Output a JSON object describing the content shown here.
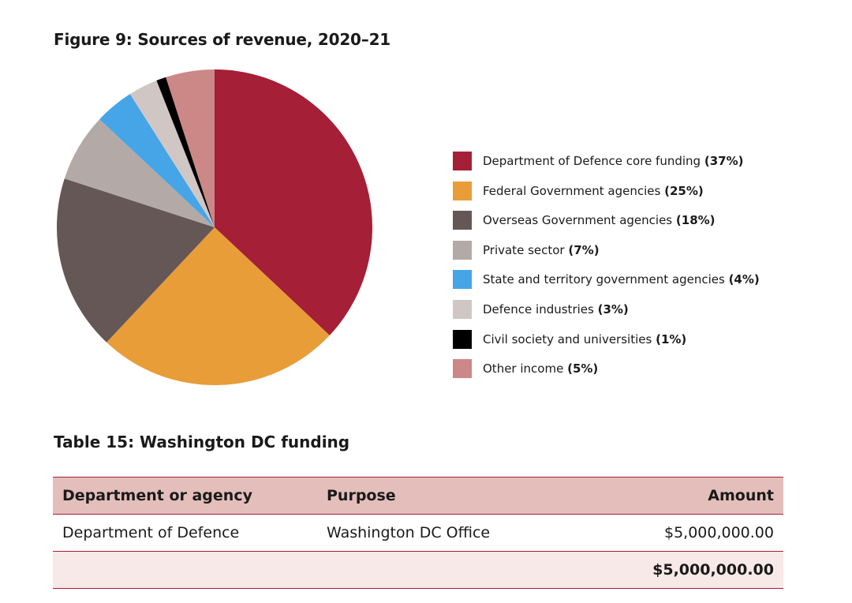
{
  "figure": {
    "title": "Figure 9: Sources of revenue, 2020–21"
  },
  "chart_data": {
    "type": "pie",
    "title": "Figure 9: Sources of revenue, 2020–21",
    "legend_position": "right",
    "slices": [
      {
        "label": "Department of Defence core funding",
        "pct_label": "(37%)",
        "value": 37,
        "color": "#a51f36"
      },
      {
        "label": "Federal Government agencies",
        "pct_label": "(25%)",
        "value": 25,
        "color": "#e89d38"
      },
      {
        "label": "Overseas Government agencies",
        "pct_label": "(18%)",
        "value": 18,
        "color": "#655756"
      },
      {
        "label": "Private sector",
        "pct_label": "(7%)",
        "value": 7,
        "color": "#b3a9a7"
      },
      {
        "label": "State and territory government agencies",
        "pct_label": "(4%)",
        "value": 4,
        "color": "#45a5e6"
      },
      {
        "label": "Defence industries",
        "pct_label": "(3%)",
        "value": 3,
        "color": "#d0c7c5"
      },
      {
        "label": "Civil society and universities",
        "pct_label": "(1%)",
        "value": 1,
        "color": "#000000"
      },
      {
        "label": "Other income",
        "pct_label": "(5%)",
        "value": 5,
        "color": "#cc8787"
      }
    ]
  },
  "table": {
    "title": "Table 15: Washington DC funding",
    "headers": [
      "Department or agency",
      "Purpose",
      "Amount"
    ],
    "rows": [
      [
        "Department of Defence",
        "Washington DC Office",
        "$5,000,000.00"
      ]
    ],
    "total": [
      "",
      "",
      "$5,000,000.00"
    ]
  }
}
